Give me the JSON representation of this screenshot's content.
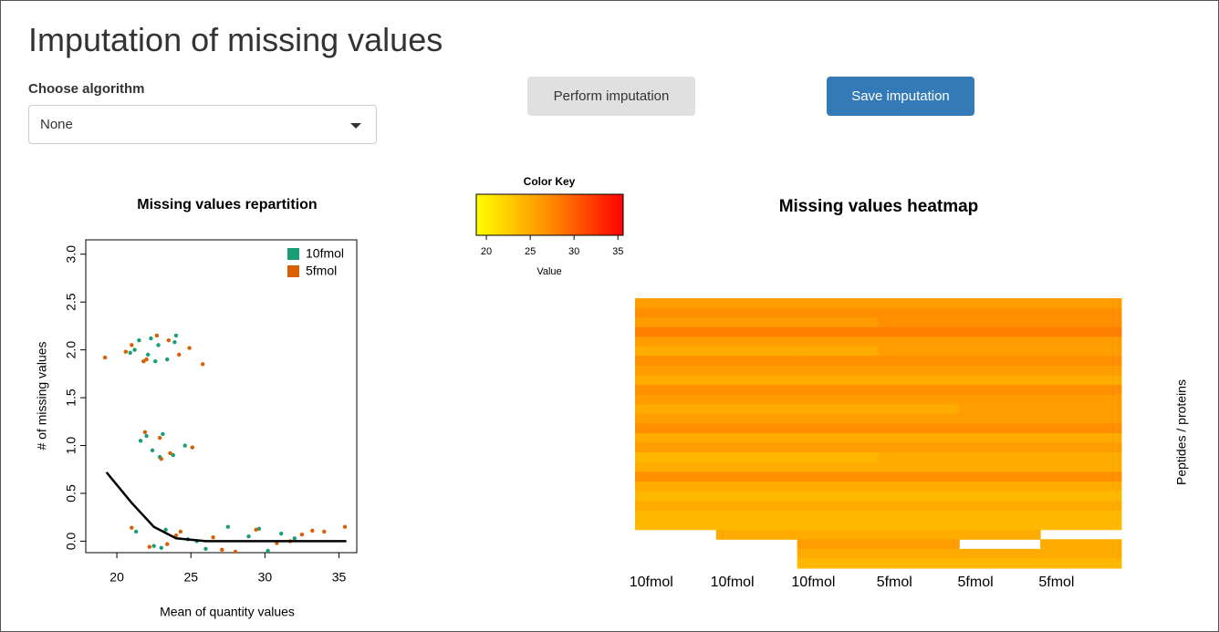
{
  "header": {
    "title": "Imputation of missing values"
  },
  "form": {
    "label": "Choose algorithm",
    "select": "None"
  },
  "buttons": [
    {
      "label": "Perform imputation"
    },
    {
      "label": "Save imputation"
    }
  ],
  "chart_data": [
    {
      "type": "scatter",
      "title": "Missing values repartition",
      "xlabel": "Mean of quantity values",
      "ylabel": "# of missing values",
      "xlim": [
        17.9,
        36.2
      ],
      "xticks": [
        20,
        25,
        30,
        35
      ],
      "ylim": [
        -0.12,
        3.15
      ],
      "yticks": [
        {
          "value": 0,
          "label": "0.0"
        },
        0.5,
        {
          "value": 1,
          "label": "1.0"
        },
        1.5,
        {
          "value": 2,
          "label": "2.0"
        },
        2.5,
        {
          "value": 3,
          "label": "3.0"
        }
      ],
      "series": [
        {
          "name": "10fmol",
          "color": "#1b9e77",
          "x": [
            21.5,
            22.1,
            22.8,
            23.4,
            24.0,
            21.2,
            22.6,
            23.9,
            20.9,
            22.3,
            21.6,
            22.4,
            23.1,
            23.8,
            24.6,
            22.0,
            22.9,
            21.3,
            22.5,
            23.3,
            24.8,
            26.0,
            27.5,
            28.9,
            30.2,
            31.1,
            25.4,
            29.6,
            23.0,
            32.0
          ],
          "values": [
            2.1,
            1.95,
            2.05,
            1.9,
            2.15,
            2.0,
            1.88,
            2.08,
            1.97,
            2.12,
            1.05,
            0.95,
            1.12,
            0.9,
            1.0,
            1.1,
            0.88,
            0.1,
            -0.05,
            0.12,
            0.02,
            -0.08,
            0.15,
            0.05,
            -0.1,
            0.08,
            0.0,
            0.13,
            -0.07,
            0.03
          ]
        },
        {
          "name": "5fmol",
          "color": "#d95f02",
          "x": [
            19.2,
            21.0,
            22.7,
            24.2,
            25.8,
            22.0,
            23.5,
            21.8,
            24.9,
            20.6,
            22.9,
            23.6,
            25.1,
            21.9,
            23.0,
            21.0,
            22.2,
            24.3,
            26.5,
            28.0,
            29.4,
            30.8,
            32.5,
            34.0,
            35.4,
            27.1,
            24.0,
            31.7,
            23.4,
            33.2
          ],
          "values": [
            1.92,
            2.05,
            2.15,
            1.95,
            1.85,
            1.9,
            2.1,
            1.88,
            2.02,
            1.98,
            1.08,
            0.92,
            0.98,
            1.14,
            0.86,
            0.14,
            -0.06,
            0.1,
            0.04,
            -0.11,
            0.12,
            -0.02,
            0.07,
            0.1,
            0.15,
            -0.09,
            0.06,
            0.0,
            -0.03,
            0.11
          ]
        }
      ],
      "trend": {
        "color": "#000000",
        "x": [
          19.3,
          21.0,
          22.5,
          24.0,
          26.0,
          30.0,
          35.5
        ],
        "values": [
          0.72,
          0.4,
          0.15,
          0.03,
          0,
          0,
          0
        ]
      },
      "legend": "top-right"
    },
    {
      "type": "heatmap",
      "title": "Missing values heatmap",
      "ylabel": "Peptides / proteins",
      "columns": [
        "10fmol",
        "10fmol",
        "10fmol",
        "5fmol",
        "5fmol",
        "5fmol"
      ],
      "rows": [
        [
          26,
          26,
          26,
          26,
          26,
          26
        ],
        [
          27,
          27,
          27,
          27,
          27,
          27
        ],
        [
          26,
          26,
          26,
          27,
          27,
          27
        ],
        [
          28,
          28,
          28,
          28,
          28,
          28
        ],
        [
          26,
          26,
          26,
          26,
          26,
          26
        ],
        [
          25,
          25,
          25,
          26,
          26,
          26
        ],
        [
          27,
          27,
          27,
          27,
          27,
          27
        ],
        [
          26,
          26,
          26,
          26,
          26,
          26
        ],
        [
          25,
          25,
          25,
          25,
          25,
          25
        ],
        [
          27,
          27,
          27,
          27,
          27,
          27
        ],
        [
          26,
          26,
          26,
          26,
          26,
          26
        ],
        [
          25,
          25,
          25,
          25,
          26,
          26
        ],
        [
          26,
          26,
          26,
          26,
          26,
          26
        ],
        [
          27,
          27,
          27,
          27,
          27,
          27
        ],
        [
          25,
          25,
          25,
          25,
          25,
          25
        ],
        [
          26,
          26,
          26,
          26,
          26,
          26
        ],
        [
          24,
          24,
          24,
          25,
          25,
          25
        ],
        [
          25,
          25,
          25,
          25,
          25,
          25
        ],
        [
          27,
          27,
          27,
          27,
          27,
          27
        ],
        [
          25,
          25,
          25,
          25,
          25,
          25
        ],
        [
          24,
          24,
          24,
          24,
          24,
          24
        ],
        [
          25,
          25,
          25,
          25,
          25,
          25
        ],
        [
          24,
          24,
          24,
          24,
          24,
          24
        ],
        [
          24,
          24,
          24,
          24,
          24,
          24
        ],
        [
          null,
          25,
          25,
          25,
          25,
          null
        ],
        [
          null,
          null,
          26,
          26,
          null,
          25
        ],
        [
          null,
          null,
          25,
          25,
          25,
          25
        ],
        [
          null,
          null,
          24,
          24,
          24,
          24
        ]
      ],
      "color_key": {
        "title": "Color Key",
        "xlabel": "Value",
        "xlim": [
          18.85,
          35.6
        ],
        "xticks": [
          20,
          25,
          30,
          35
        ],
        "colors": [
          "#ffff00",
          "#ff8c00",
          "#ff0000"
        ]
      }
    }
  ]
}
